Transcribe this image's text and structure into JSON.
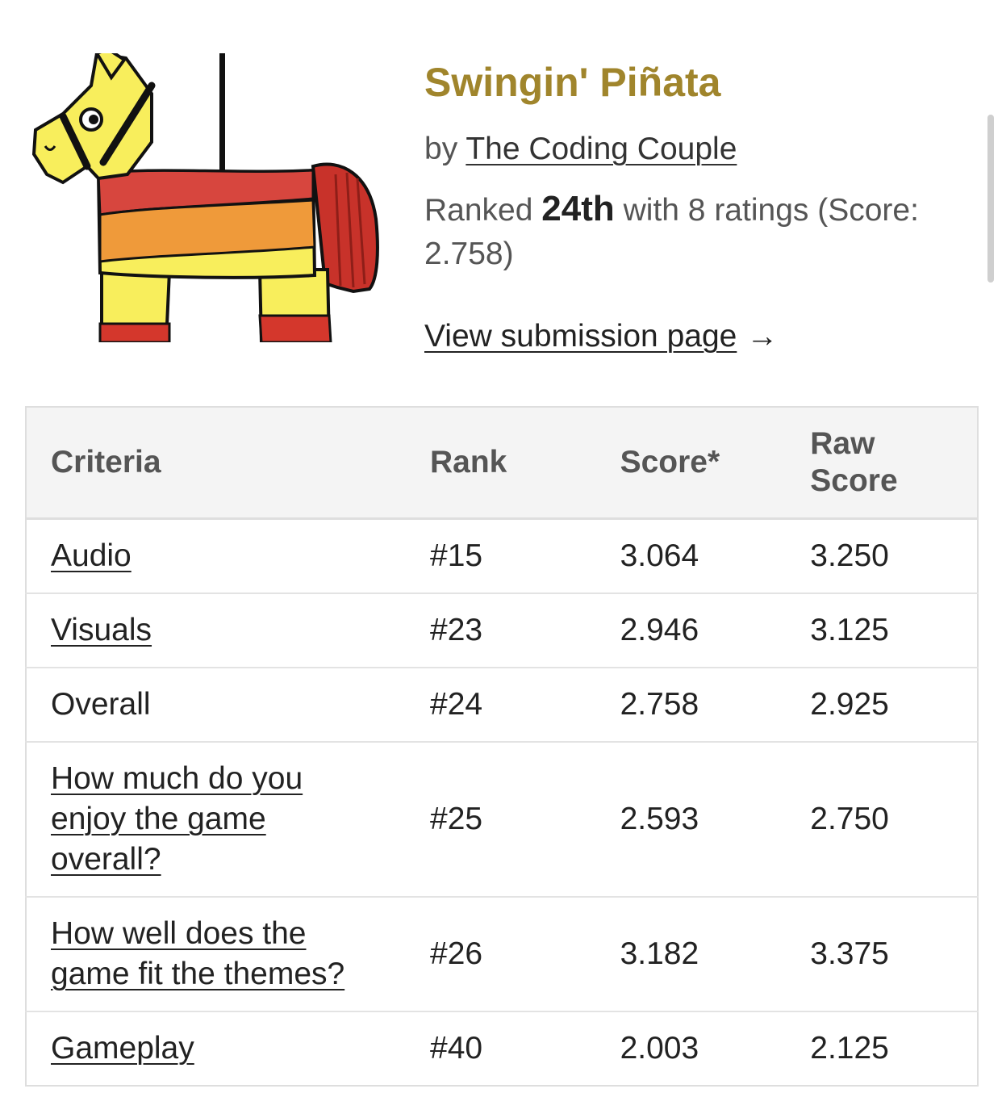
{
  "game": {
    "title": "Swingin' Piñata",
    "by_prefix": "by",
    "author": "The Coding Couple",
    "ranked_prefix": "Ranked",
    "rank": "24th",
    "ranked_suffix": "with 8 ratings (Score: 2.758)",
    "view_link": "View submission page",
    "view_arrow": "→",
    "thumbnail_icon": "pinata-donkey-image"
  },
  "table": {
    "headers": [
      "Criteria",
      "Rank",
      "Score*",
      "Raw Score"
    ],
    "rows": [
      {
        "criteria": "Audio",
        "link": true,
        "rank": "#15",
        "score": "3.064",
        "raw": "3.250"
      },
      {
        "criteria": "Visuals",
        "link": true,
        "rank": "#23",
        "score": "2.946",
        "raw": "3.125"
      },
      {
        "criteria": "Overall",
        "link": false,
        "rank": "#24",
        "score": "2.758",
        "raw": "2.925"
      },
      {
        "criteria": "How much do you enjoy the game overall?",
        "link": true,
        "rank": "#25",
        "score": "2.593",
        "raw": "2.750"
      },
      {
        "criteria": "How well does the game fit the themes?",
        "link": true,
        "rank": "#26",
        "score": "3.182",
        "raw": "3.375"
      },
      {
        "criteria": "Gameplay",
        "link": true,
        "rank": "#40",
        "score": "2.003",
        "raw": "2.125"
      }
    ]
  },
  "colors": {
    "title": "#a0852c",
    "header_bg": "#f4f4f4",
    "border": "#dedede"
  }
}
